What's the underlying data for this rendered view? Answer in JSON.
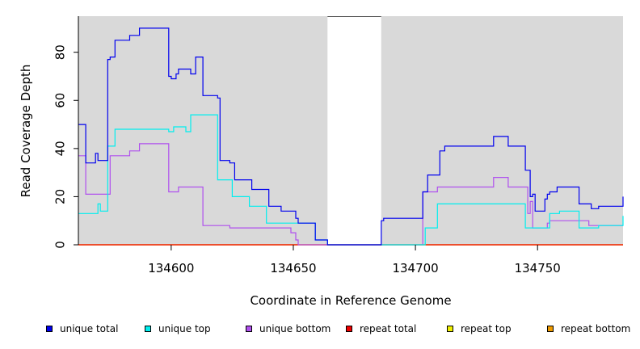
{
  "chart_data": {
    "type": "line",
    "title": "",
    "xlabel": "Coordinate in Reference Genome",
    "ylabel": "Read Coverage Depth",
    "xlim": [
      134562,
      134785
    ],
    "ylim": [
      0,
      95
    ],
    "x_ticks": [
      134600,
      134650,
      134700,
      134750
    ],
    "y_ticks": [
      0,
      20,
      40,
      60,
      80
    ],
    "gap": [
      134664,
      134686
    ],
    "grid": false,
    "legend_position": "bottom",
    "series": [
      {
        "name": "unique total",
        "color": "#0000ee",
        "step": true,
        "points": [
          [
            134562,
            50
          ],
          [
            134565,
            34
          ],
          [
            134569,
            38
          ],
          [
            134570,
            35
          ],
          [
            134574,
            77
          ],
          [
            134575,
            78
          ],
          [
            134577,
            85
          ],
          [
            134583,
            87
          ],
          [
            134587,
            90
          ],
          [
            134599,
            70
          ],
          [
            134600,
            69
          ],
          [
            134602,
            71
          ],
          [
            134603,
            73
          ],
          [
            134608,
            71
          ],
          [
            134610,
            78
          ],
          [
            134613,
            62
          ],
          [
            134619,
            61
          ],
          [
            134620,
            35
          ],
          [
            134624,
            34
          ],
          [
            134626,
            27
          ],
          [
            134633,
            23
          ],
          [
            134640,
            16
          ],
          [
            134645,
            14
          ],
          [
            134651,
            11
          ],
          [
            134652,
            9
          ],
          [
            134659,
            2
          ],
          [
            134664,
            0
          ],
          [
            134686,
            10
          ],
          [
            134687,
            11
          ],
          [
            134703,
            22
          ],
          [
            134705,
            29
          ],
          [
            134710,
            39
          ],
          [
            134712,
            41
          ],
          [
            134726,
            41
          ],
          [
            134732,
            45
          ],
          [
            134738,
            41
          ],
          [
            134745,
            31
          ],
          [
            134747,
            20
          ],
          [
            134748,
            21
          ],
          [
            134749,
            14
          ],
          [
            134753,
            19
          ],
          [
            134754,
            21
          ],
          [
            134755,
            22
          ],
          [
            134758,
            24
          ],
          [
            134767,
            17
          ],
          [
            134772,
            15
          ],
          [
            134775,
            16
          ],
          [
            134785,
            20
          ]
        ]
      },
      {
        "name": "unique top",
        "color": "#00eeee",
        "step": true,
        "points": [
          [
            134562,
            13
          ],
          [
            134570,
            17
          ],
          [
            134571,
            14
          ],
          [
            134574,
            41
          ],
          [
            134577,
            48
          ],
          [
            134599,
            47
          ],
          [
            134601,
            49
          ],
          [
            134606,
            47
          ],
          [
            134608,
            54
          ],
          [
            134619,
            27
          ],
          [
            134625,
            20
          ],
          [
            134632,
            16
          ],
          [
            134639,
            9
          ],
          [
            134652,
            9
          ],
          [
            134659,
            2
          ],
          [
            134664,
            0
          ],
          [
            134686,
            0
          ],
          [
            134704,
            7
          ],
          [
            134709,
            17
          ],
          [
            134745,
            7
          ],
          [
            134755,
            13
          ],
          [
            134759,
            14
          ],
          [
            134767,
            7
          ],
          [
            134775,
            8
          ],
          [
            134785,
            12
          ]
        ]
      },
      {
        "name": "unique bottom",
        "color": "#b050ee",
        "step": true,
        "points": [
          [
            134562,
            37
          ],
          [
            134565,
            21
          ],
          [
            134575,
            37
          ],
          [
            134583,
            39
          ],
          [
            134587,
            42
          ],
          [
            134599,
            22
          ],
          [
            134603,
            24
          ],
          [
            134613,
            8
          ],
          [
            134624,
            7
          ],
          [
            134649,
            5
          ],
          [
            134651,
            2
          ],
          [
            134652,
            0
          ],
          [
            134664,
            0
          ],
          [
            134686,
            0
          ],
          [
            134703,
            22
          ],
          [
            134709,
            24
          ],
          [
            134732,
            28
          ],
          [
            134738,
            24
          ],
          [
            134746,
            13
          ],
          [
            134747,
            18
          ],
          [
            134748,
            7
          ],
          [
            134754,
            9
          ],
          [
            134755,
            10
          ],
          [
            134771,
            8
          ],
          [
            134785,
            8
          ]
        ]
      },
      {
        "name": "repeat total",
        "color": "#ee0000",
        "step": true,
        "points": [
          [
            134562,
            0
          ],
          [
            134664,
            0
          ],
          [
            134686,
            0
          ],
          [
            134785,
            0
          ]
        ]
      },
      {
        "name": "repeat top",
        "color": "#eeee00",
        "step": true,
        "points": [
          [
            134562,
            0
          ],
          [
            134664,
            0
          ],
          [
            134686,
            0
          ],
          [
            134785,
            0
          ]
        ]
      },
      {
        "name": "repeat bottom",
        "color": "#ee9a00",
        "step": true,
        "points": [
          [
            134562,
            0
          ],
          [
            134664,
            0
          ],
          [
            134686,
            0
          ],
          [
            134785,
            0
          ]
        ]
      }
    ]
  },
  "colors": {
    "panel": "#d9d9d9",
    "axis": "#000000"
  }
}
